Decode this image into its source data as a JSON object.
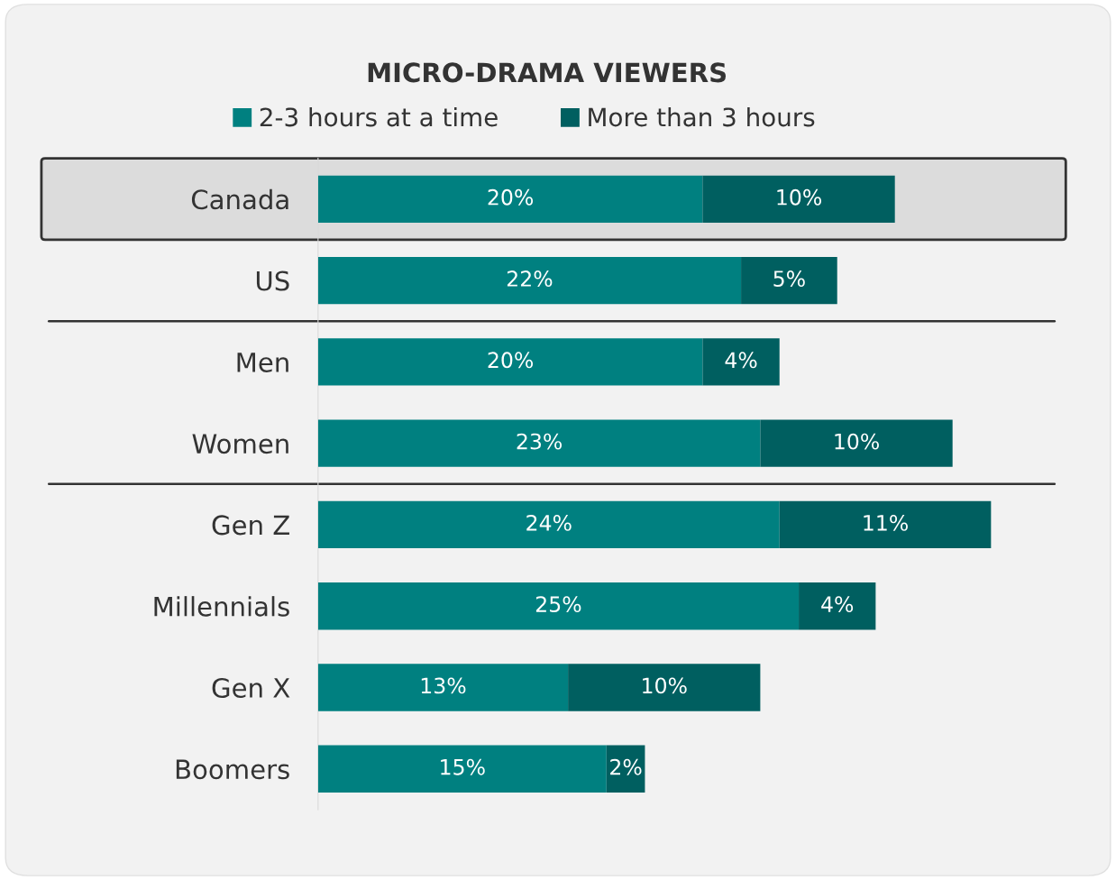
{
  "chart_data": {
    "type": "bar",
    "orientation": "horizontal",
    "stacked": true,
    "title": "MICRO-DRAMA VIEWERS",
    "categories": [
      "Canada",
      "US",
      "Men",
      "Women",
      "Gen Z",
      "Millennials",
      "Gen X",
      "Boomers"
    ],
    "series": [
      {
        "name": "2-3 hours at a time",
        "color": "#008080",
        "values": [
          20,
          22,
          20,
          23,
          24,
          25,
          13,
          15
        ],
        "value_labels": [
          "20%",
          "22%",
          "20%",
          "23%",
          "24%",
          "25%",
          "13%",
          "15%"
        ]
      },
      {
        "name": "More than 3 hours",
        "color": "#005f60",
        "values": [
          10,
          5,
          4,
          10,
          11,
          4,
          10,
          2
        ],
        "value_labels": [
          "10%",
          "5%",
          "4%",
          "10%",
          "11%",
          "4%",
          "10%",
          "2%"
        ]
      }
    ],
    "legend": "top",
    "grid": false
  }
}
